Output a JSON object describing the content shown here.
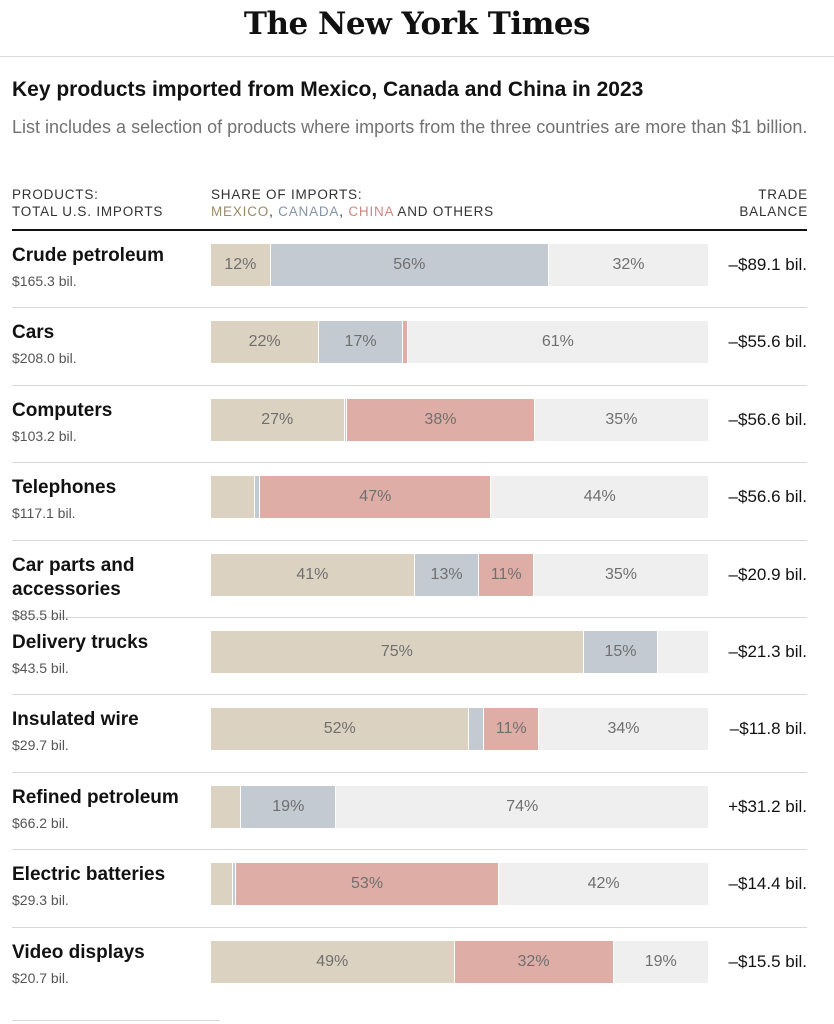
{
  "masthead": {
    "logo_text": "The New York Times"
  },
  "header": {
    "title": "Key products imported from Mexico, Canada and China in 2023",
    "subtitle": "List includes a selection of products where imports from the three countries are more than $1 billion."
  },
  "columns": {
    "products_line1": "PRODUCTS:",
    "products_line2": "TOTAL U.S. IMPORTS",
    "share_line1": "SHARE OF IMPORTS:",
    "legend_mexico": "MEXICO",
    "legend_sep1": ", ",
    "legend_canada": "CANADA",
    "legend_sep2": ", ",
    "legend_china": "CHINA",
    "legend_others": " AND OTHERS",
    "balance_line1": "TRADE",
    "balance_line2": "BALANCE"
  },
  "colors": {
    "mexico": "#dcd2c2",
    "canada": "#c3cad1",
    "china": "#deaea6",
    "others": "#efefef"
  },
  "chart_data": {
    "type": "bar",
    "orientation": "horizontal",
    "stacked": true,
    "unit": "percent",
    "series": [
      {
        "name": "Mexico",
        "color": "#dcd2c2"
      },
      {
        "name": "Canada",
        "color": "#c3cad1"
      },
      {
        "name": "China",
        "color": "#deaea6"
      },
      {
        "name": "Others",
        "color": "#efefef"
      }
    ],
    "rows": [
      {
        "product": "Crude petroleum",
        "total": "$165.3 bil.",
        "mexico": 12,
        "canada": 56,
        "china": 0,
        "others": 32,
        "labels": [
          "12%",
          "56%",
          "",
          "32%"
        ],
        "balance": "–$89.1 bil."
      },
      {
        "product": "Cars",
        "total": "$208.0 bil.",
        "mexico": 22,
        "canada": 17,
        "china": 1,
        "others": 61,
        "labels": [
          "22%",
          "17%",
          "",
          "61%"
        ],
        "balance": "–$55.6 bil."
      },
      {
        "product": "Computers",
        "total": "$103.2 bil.",
        "mexico": 27,
        "canada": 0.5,
        "china": 38,
        "others": 35,
        "labels": [
          "27%",
          "",
          "38%",
          "35%"
        ],
        "balance": "–$56.6 bil."
      },
      {
        "product": "Telephones",
        "total": "$117.1 bil.",
        "mexico": 9,
        "canada": 1,
        "china": 47,
        "others": 44,
        "labels": [
          "",
          "",
          "47%",
          "44%"
        ],
        "balance": "–$56.6 bil."
      },
      {
        "product": "Car parts and accessories",
        "total": "$85.5 bil.",
        "mexico": 41,
        "canada": 13,
        "china": 11,
        "others": 35,
        "labels": [
          "41%",
          "13%",
          "11%",
          "35%"
        ],
        "balance": "–$20.9 bil."
      },
      {
        "product": "Delivery trucks",
        "total": "$43.5 bil.",
        "mexico": 75,
        "canada": 15,
        "china": 0,
        "others": 10,
        "labels": [
          "75%",
          "15%",
          "",
          ""
        ],
        "balance": "–$21.3 bil."
      },
      {
        "product": "Insulated wire",
        "total": "$29.7 bil.",
        "mexico": 52,
        "canada": 3,
        "china": 11,
        "others": 34,
        "labels": [
          "52%",
          "",
          "11%",
          "34%"
        ],
        "balance": "–$11.8 bil."
      },
      {
        "product": "Refined petroleum",
        "total": "$66.2 bil.",
        "mexico": 6,
        "canada": 19,
        "china": 0,
        "others": 74,
        "labels": [
          "",
          "19%",
          "",
          "74%"
        ],
        "balance": "+$31.2 bil."
      },
      {
        "product": "Electric batteries",
        "total": "$29.3 bil.",
        "mexico": 4.5,
        "canada": 0.5,
        "china": 53,
        "others": 42,
        "labels": [
          "",
          "",
          "53%",
          "42%"
        ],
        "balance": "–$14.4 bil."
      },
      {
        "product": "Video displays",
        "total": "$20.7 bil.",
        "mexico": 49,
        "canada": 0,
        "china": 32,
        "others": 19,
        "labels": [
          "49%",
          "",
          "32%",
          "19%"
        ],
        "balance": "–$15.5 bil."
      }
    ]
  }
}
